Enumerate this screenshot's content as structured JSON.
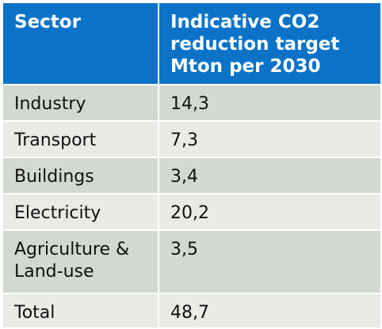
{
  "table": {
    "headers": [
      "Sector",
      "Indicative CO2 reduction target Mton per 2030"
    ],
    "rows": [
      {
        "sector": "Industry",
        "value": "14,3"
      },
      {
        "sector": "Transport",
        "value": "7,3"
      },
      {
        "sector": "Buildings",
        "value": "3,4"
      },
      {
        "sector": "Electricity",
        "value": "20,2"
      },
      {
        "sector": "Agriculture & Land-use",
        "value": "3,5"
      },
      {
        "sector": "Total",
        "value": "48,7"
      }
    ]
  },
  "colors": {
    "header_bg": "#0a73c8",
    "header_text": "#ffffff",
    "row_dark": "#d2d9d0",
    "row_light": "#e8ebe6"
  }
}
